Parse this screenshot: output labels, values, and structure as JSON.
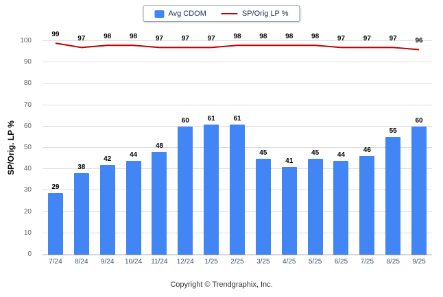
{
  "footer": "Copyright © Trendgraphix, Inc.",
  "chart_data": {
    "type": "bar+line",
    "title": "",
    "xlabel": "",
    "ylabel": "SP/Orig. LP %",
    "categories": [
      "7/24",
      "8/24",
      "9/24",
      "10/24",
      "11/24",
      "12/24",
      "1/25",
      "2/25",
      "3/25",
      "4/25",
      "5/25",
      "6/25",
      "7/25",
      "8/25",
      "9/25"
    ],
    "series": [
      {
        "name": "Avg CDOM",
        "type": "bar",
        "color": "#4285f4",
        "values": [
          29,
          38,
          42,
          44,
          48,
          60,
          61,
          61,
          45,
          41,
          45,
          44,
          46,
          55,
          60
        ]
      },
      {
        "name": "SP/Orig LP %",
        "type": "line",
        "color": "#c00000",
        "values": [
          99,
          97,
          98,
          98,
          97,
          97,
          97,
          98,
          98,
          98,
          98,
          97,
          97,
          97,
          96
        ]
      }
    ],
    "ylim": [
      0,
      100
    ],
    "ytick_step": 10,
    "grid": true,
    "legend_position": "top"
  }
}
